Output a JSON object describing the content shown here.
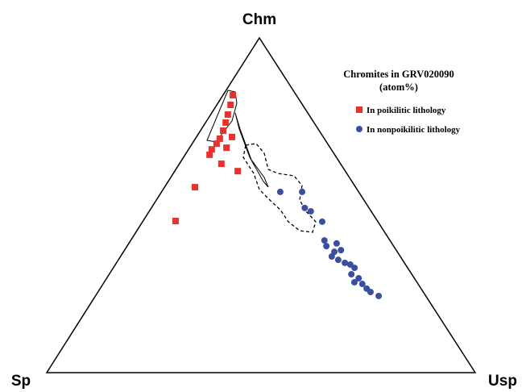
{
  "chart_data": {
    "type": "ternary",
    "title": "Chromites in GRV020090",
    "subtitle": "(atom%)",
    "apex_labels": {
      "top": "Chm",
      "left": "Sp",
      "right": "Usp"
    },
    "series": [
      {
        "name": "In poikilitic lithology",
        "color": "#e8322b",
        "marker": "square",
        "chm": [
          82.9,
          80.0,
          77.1,
          74.7,
          72.3,
          69.9,
          68.4,
          66.7,
          65.1,
          70.4,
          67.2,
          62.4,
          60.2,
          55.4,
          45.3
        ],
        "usp": [
          2.3,
          3.2,
          4.0,
          4.7,
          5.3,
          5.7,
          5.7,
          5.4,
          5.7,
          8.3,
          8.6,
          9.8,
          14.7,
          7.1,
          7.6
        ]
      },
      {
        "name": "In nonpoikilitic lithology",
        "color": "#3a4fa0",
        "marker": "circle",
        "chm": [
          54.0,
          54.0,
          49.2,
          48.2,
          45.1,
          39.5,
          37.8,
          38.6,
          36.1,
          34.7,
          33.7,
          32.8,
          32.3,
          31.3,
          29.4,
          28.2,
          27.0,
          26.5,
          25.1,
          24.1,
          22.9,
          36.6
        ],
        "usp": [
          27.7,
          32.8,
          35.8,
          37.7,
          41.9,
          45.2,
          46.5,
          48.5,
          49.2,
          49.3,
          51.3,
          53.3,
          54.8,
          56.3,
          56.5,
          58.8,
          58.4,
          60.5,
          62.2,
          63.6,
          66.1,
          50.5
        ]
      }
    ],
    "legend": "upper right"
  }
}
